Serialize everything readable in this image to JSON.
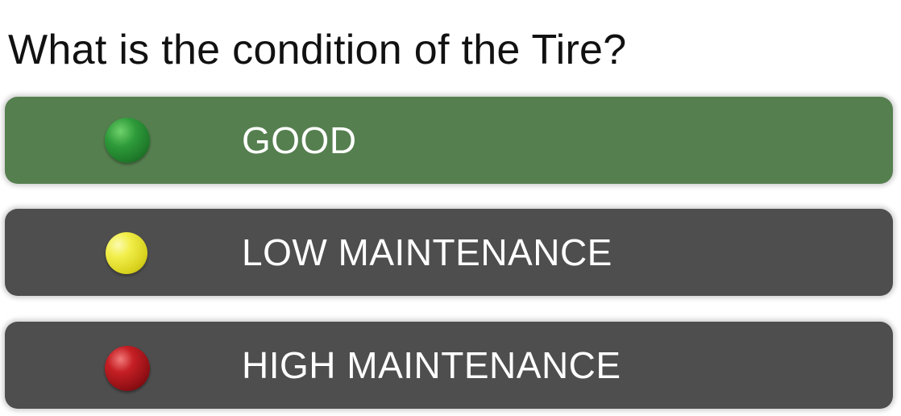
{
  "question": "What is the condition of the Tire?",
  "options": [
    {
      "label": "GOOD",
      "indicator": "green-ball-icon",
      "color": "#2e9b3a",
      "selected": true
    },
    {
      "label": "LOW MAINTENANCE",
      "indicator": "yellow-ball-icon",
      "color": "#f2ee4a",
      "selected": false
    },
    {
      "label": "HIGH MAINTENANCE",
      "indicator": "red-ball-icon",
      "color": "#c51f24",
      "selected": false
    }
  ],
  "colors": {
    "selected_background": "#557f4f",
    "unselected_background": "#4e4e4e",
    "label_text": "#ffffff"
  }
}
